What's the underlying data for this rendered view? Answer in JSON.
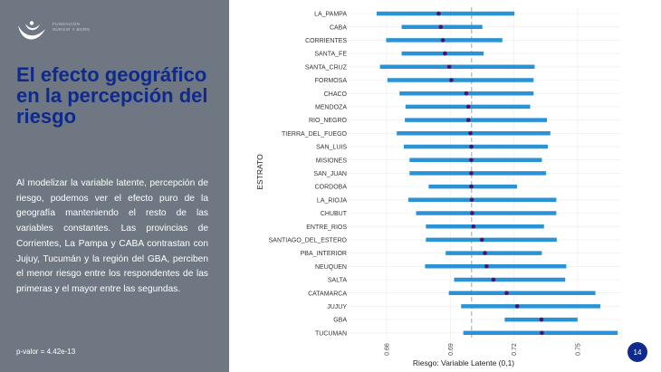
{
  "slide": {
    "logo_text": "FUNDACIÓN\nSURGIR Y BORN",
    "title": "El efecto geográfico en la percepción del riesgo",
    "body": "Al modelizar la variable latente, percepción de riesgo, podemos ver el efecto puro de la geografía manteniendo el resto de las variables constantes. Las provincias de Corrientes, La Pampa y CABA contrastan con Jujuy, Tucumán y la región del GBA, perciben el menor riesgo entre los respondentes de las primeras y el mayor entre las segundas.",
    "pvalue": "p-valor = 4.42e-13",
    "page_number": "14"
  },
  "chart_data": {
    "type": "errorbar",
    "xlabel": "Riesgo: Variable Latente (0,1)",
    "ylabel": "ESTRATO",
    "xlim": [
      0.64,
      0.77
    ],
    "x_ticks": [
      "0.66",
      "0.69",
      "0.72",
      "0.75"
    ],
    "reference_line": 0.7,
    "colors": {
      "bar": "#2a93d5",
      "point": "#4a1460",
      "ref": "#b3b3b3",
      "grid": "#ebebeb"
    },
    "categories": [
      "LA_PAMPA",
      "CABA",
      "CORRIENTES",
      "SANTA_FE",
      "SANTA_CRUZ",
      "FORMOSA",
      "CHACO",
      "MENDOZA",
      "RIO_NEGRO",
      "TIERRA_DEL_FUEGO",
      "SAN_LUIS",
      "MISIONES",
      "SAN_JUAN",
      "CORDOBA",
      "LA_RIOJA",
      "CHUBUT",
      "ENTRE_RIOS",
      "SANTIAGO_DEL_ESTERO",
      "PBA_INTERIOR",
      "NEUQUEN",
      "SALTA",
      "CATAMARCA",
      "JUJUY",
      "GBA",
      "TUCUMAN"
    ],
    "estimate": [
      0.6845,
      0.6855,
      0.6865,
      0.6875,
      0.6895,
      0.6905,
      0.6975,
      0.6985,
      0.6985,
      0.6995,
      0.6999,
      0.6999,
      0.6999,
      0.6999,
      0.7001,
      0.7003,
      0.7009,
      0.7049,
      0.7063,
      0.7071,
      0.7103,
      0.7165,
      0.7215,
      0.7329,
      0.7331
    ],
    "lower": [
      0.6553,
      0.6671,
      0.6598,
      0.6671,
      0.6569,
      0.6604,
      0.6661,
      0.6689,
      0.6686,
      0.6648,
      0.6681,
      0.6708,
      0.6708,
      0.6798,
      0.6702,
      0.6739,
      0.6785,
      0.6785,
      0.6878,
      0.6781,
      0.6918,
      0.6893,
      0.6951,
      0.7156,
      0.6961
    ],
    "upper": [
      0.7202,
      0.7051,
      0.7145,
      0.7057,
      0.7297,
      0.7292,
      0.7292,
      0.7276,
      0.7355,
      0.7371,
      0.7359,
      0.7331,
      0.7351,
      0.7214,
      0.7399,
      0.7399,
      0.7341,
      0.7401,
      0.7331,
      0.7446,
      0.7441,
      0.7583,
      0.7606,
      0.7499,
      0.7688
    ]
  }
}
